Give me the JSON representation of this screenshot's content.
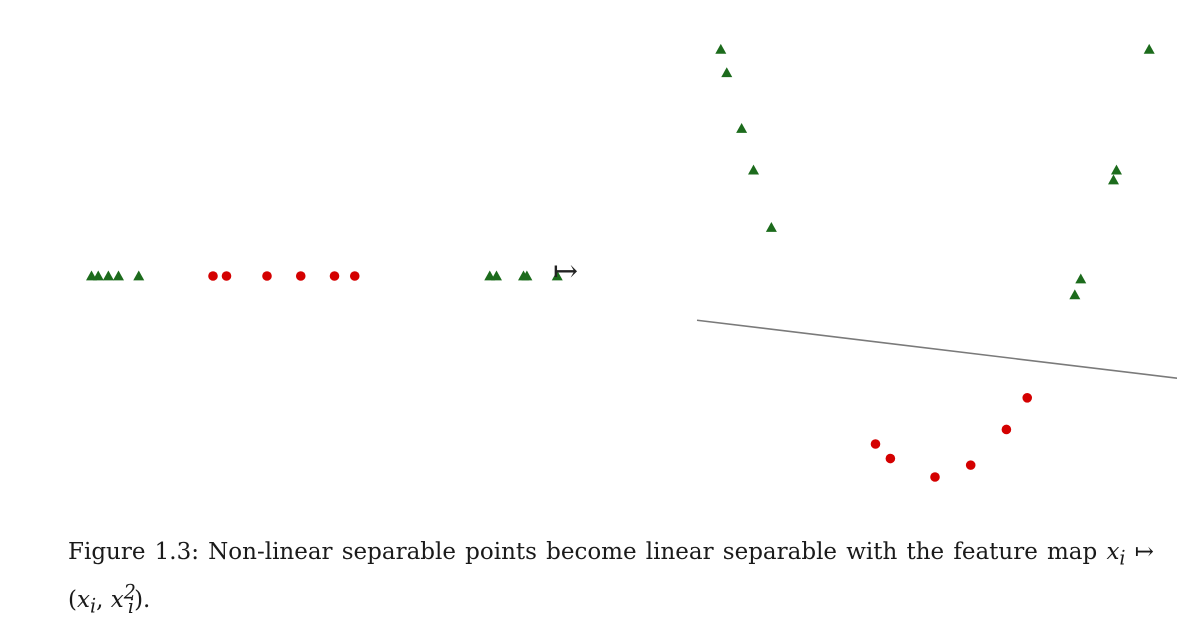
{
  "figure": {
    "caption_label": "Figure 1.3:",
    "caption_text": "Non-linear separable points become linear separable with the feature map",
    "caption_formula_lhs": "x",
    "caption_formula_sub": "i",
    "caption_formula_arrow": "↦",
    "caption_formula_rhs_open": "(",
    "caption_formula_rhs_var1": "x",
    "caption_formula_rhs_sub1": "i",
    "caption_formula_rhs_sep": ", ",
    "caption_formula_rhs_var2": "x",
    "caption_formula_rhs_sub2": "i",
    "caption_formula_rhs_sup2": "2",
    "caption_formula_rhs_close": ").",
    "maps_to_symbol": "↦"
  },
  "colors": {
    "triangle": "#1c6b1c",
    "circle": "#d40000",
    "line": "#7a7a7a"
  },
  "chart_data": [
    {
      "type": "scatter",
      "dimension": "1d",
      "series": [
        {
          "marker": "triangle",
          "x": [
            -3.6,
            -3.5,
            -3.35,
            -3.2,
            -2.9,
            2.3,
            2.4,
            2.8,
            2.85,
            3.3
          ]
        },
        {
          "marker": "circle",
          "x": [
            -1.8,
            -1.6,
            -1.0,
            -0.5,
            0.0,
            0.3
          ]
        }
      ]
    },
    {
      "type": "scatter",
      "dimension": "2d",
      "series": [
        {
          "marker": "triangle",
          "points": [
            [
              -3.6,
              12.96
            ],
            [
              -3.5,
              12.25
            ],
            [
              -3.25,
              10.56
            ],
            [
              -3.05,
              9.3
            ],
            [
              -2.75,
              7.56
            ],
            [
              2.35,
              5.52
            ],
            [
              2.45,
              6.0
            ],
            [
              3.0,
              9.0
            ],
            [
              3.05,
              9.3
            ],
            [
              3.6,
              12.96
            ]
          ]
        },
        {
          "marker": "circle",
          "points": [
            [
              -1.0,
              1.0
            ],
            [
              -0.75,
              0.56
            ],
            [
              0.0,
              0.0
            ],
            [
              0.6,
              0.36
            ],
            [
              1.2,
              1.44
            ],
            [
              1.55,
              2.4
            ]
          ]
        }
      ],
      "separating_line": {
        "x": [
          -4.0,
          4.5
        ],
        "y": [
          4.75,
          2.9
        ]
      },
      "grid": false
    }
  ]
}
